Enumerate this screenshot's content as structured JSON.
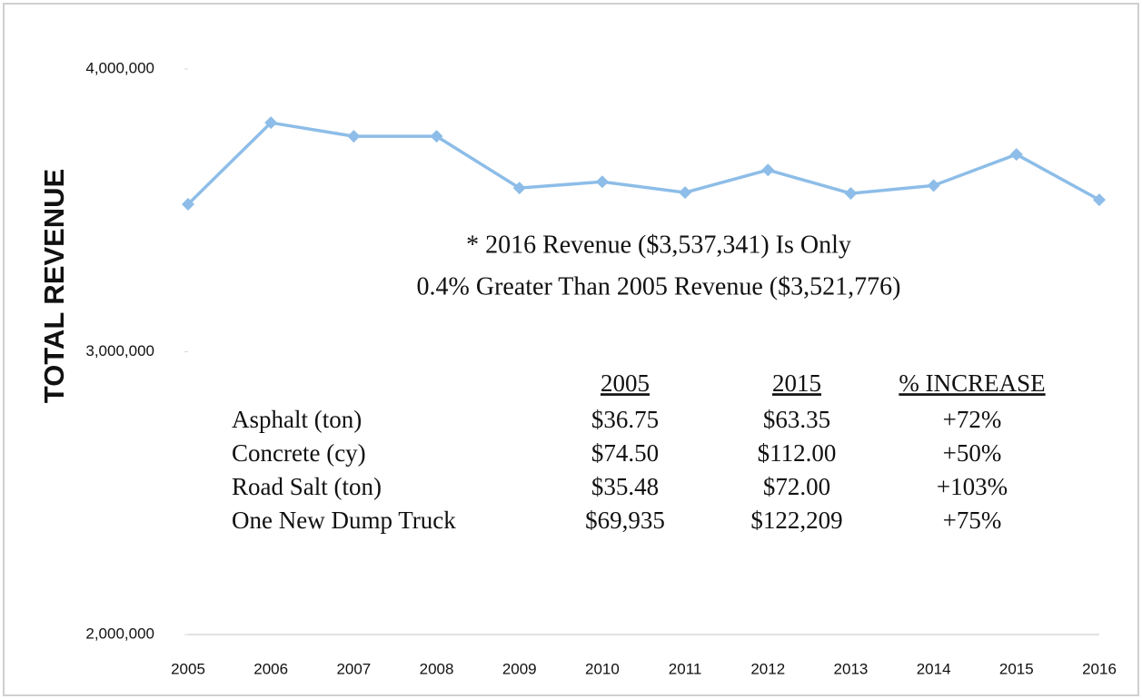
{
  "chart_data": {
    "type": "line",
    "ylabel": "TOTAL REVENUE",
    "categories": [
      "2005",
      "2006",
      "2007",
      "2008",
      "2009",
      "2010",
      "2011",
      "2012",
      "2013",
      "2014",
      "2015",
      "2016"
    ],
    "series": [
      {
        "name": "Total Revenue",
        "color": "#8dbde8",
        "values": [
          3521776,
          3810000,
          3762000,
          3762000,
          3579000,
          3601000,
          3563000,
          3643000,
          3560000,
          3588000,
          3698000,
          3537341
        ]
      }
    ],
    "ylim": [
      2000000,
      4000000
    ],
    "yticks": [
      {
        "value": 2000000,
        "label": "2,000,000"
      },
      {
        "value": 3000000,
        "label": "3,000,000"
      },
      {
        "value": 4000000,
        "label": "4,000,000"
      }
    ],
    "grid": false,
    "annotation": [
      "* 2016 Revenue ($3,537,341) Is Only",
      "0.4% Greater Than 2005 Revenue ($3,521,776)"
    ],
    "table": {
      "header": [
        "2005",
        "2015",
        "% INCREASE"
      ],
      "rows": [
        [
          "Asphalt (ton)",
          "$36.75",
          "$63.35",
          "+72%"
        ],
        [
          "Concrete (cy)",
          "$74.50",
          "$112.00",
          "+50%"
        ],
        [
          "Road Salt (ton)",
          "$35.48",
          "$72.00",
          "+103%"
        ],
        [
          "One New Dump Truck",
          "$69,935",
          "$122,209",
          "+75%"
        ]
      ]
    }
  }
}
